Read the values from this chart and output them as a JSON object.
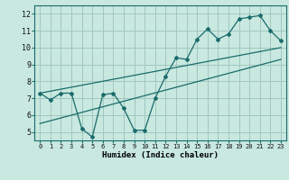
{
  "xlabel": "Humidex (Indice chaleur)",
  "bg_color": "#c8e8e0",
  "grid_color": "#a0c8c0",
  "line_color": "#1a6b6b",
  "xlim": [
    -0.5,
    23.5
  ],
  "ylim": [
    4.5,
    12.5
  ],
  "xticks": [
    0,
    1,
    2,
    3,
    4,
    5,
    6,
    7,
    8,
    9,
    10,
    11,
    12,
    13,
    14,
    15,
    16,
    17,
    18,
    19,
    20,
    21,
    22,
    23
  ],
  "yticks": [
    5,
    6,
    7,
    8,
    9,
    10,
    11,
    12
  ],
  "main_x": [
    0,
    1,
    2,
    3,
    4,
    5,
    6,
    7,
    8,
    9,
    10,
    11,
    12,
    13,
    14,
    15,
    16,
    17,
    18,
    19,
    20,
    21,
    22,
    23
  ],
  "main_y": [
    7.3,
    6.9,
    7.3,
    7.3,
    5.2,
    4.7,
    7.2,
    7.3,
    6.4,
    5.1,
    5.1,
    7.0,
    8.3,
    9.4,
    9.3,
    10.5,
    11.1,
    10.5,
    10.8,
    11.7,
    11.8,
    11.9,
    11.0,
    10.4
  ],
  "trend1_x": [
    0,
    23
  ],
  "trend1_y": [
    7.3,
    10.0
  ],
  "trend2_x": [
    0,
    23
  ],
  "trend2_y": [
    5.5,
    9.3
  ]
}
